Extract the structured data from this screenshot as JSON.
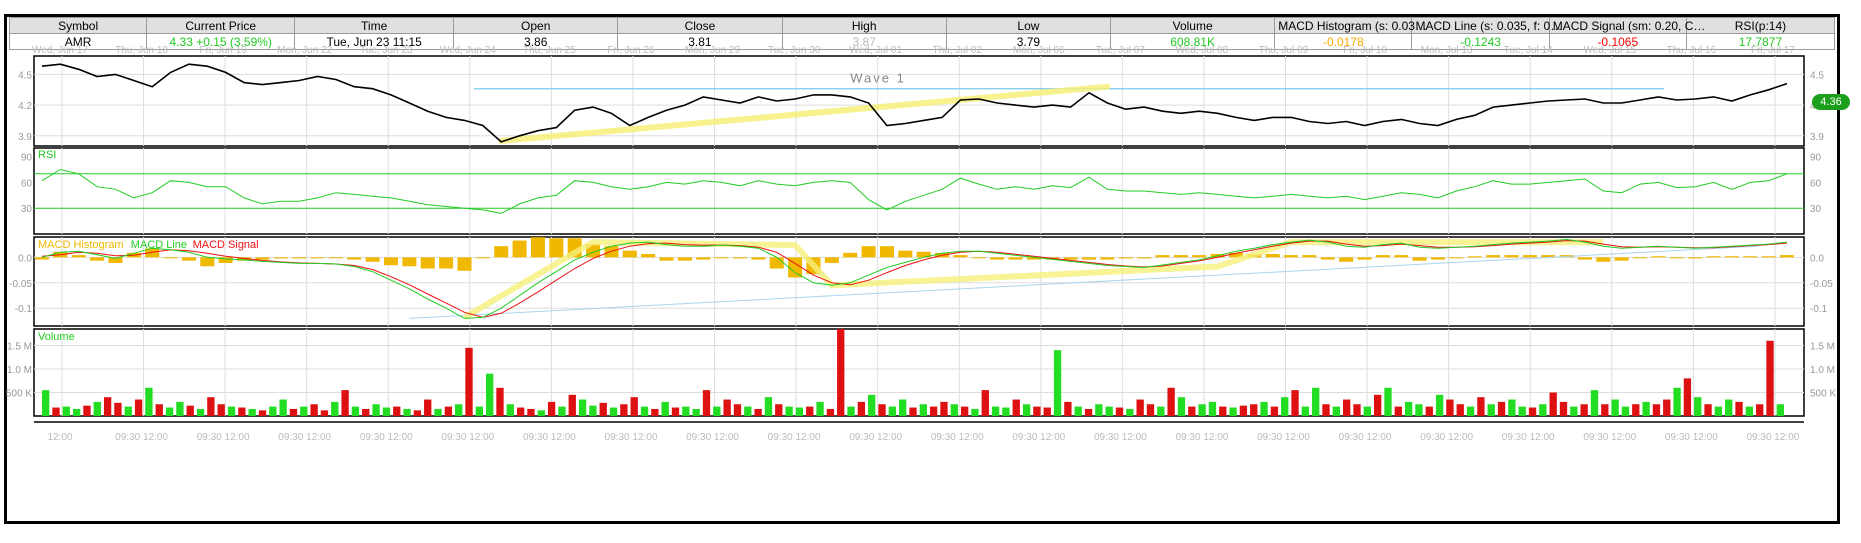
{
  "header": {
    "columns": [
      "Symbol",
      "Current Price",
      "Time",
      "Open",
      "Close",
      "High",
      "Low",
      "Volume",
      "MACD Histogram (s: 0.03…",
      "MACD Line (s: 0.035, f: 0…",
      "MACD Signal (sm: 0.20, C…",
      "RSI(p:14)"
    ],
    "values": [
      "AMR",
      "4.33 +0.15 (3.59%)",
      "Tue, Jun 23  11:15",
      "3.86",
      "3.81",
      "3.87",
      "3.79",
      "608.81K",
      "-0.0178",
      "-0.1243",
      "-0.1065",
      "17.7877"
    ],
    "value_colors": [
      "#000000",
      "#22cc22",
      "#000000",
      "#000000",
      "#000000",
      "#bbbbbb",
      "#000000",
      "#22cc22",
      "#ffaa00",
      "#22cc22",
      "#ff0000",
      "#22cc22"
    ]
  },
  "chart_data": {
    "type": "line",
    "x_dates": [
      "Wed, Jun 17",
      "Thu, Jun 18",
      "Fri, Jun 19",
      "Mon, Jun 22",
      "Tue, Jun 23",
      "Wed, Jun 24",
      "Thu, Jun 25",
      "Fri, Jun 26",
      "Mon, Jun 29",
      "Tue, Jun 30",
      "Wed, Jul 01",
      "Thu, Jul 02",
      "Mon, Jul 06",
      "Tue, Jul 07",
      "Wed, Jul 08",
      "Thu, Jul 09",
      "Fri, Jul 10",
      "Mon, Jul 13",
      "Tue, Jul 14",
      "Wed, Jul 15",
      "Thu, Jul 16",
      "Fri, Jul 17"
    ],
    "x_time_labels": [
      "12:00",
      "09:30 12:00",
      "09:30 12:00",
      "09:30 12:00",
      "09:30 12:00",
      "09:30 12:00",
      "09:30 12:00",
      "09:30 12:00",
      "09:30 12:00",
      "09:30 12:00",
      "09:30 12:00",
      "09:30 12:00",
      "09:30 12:00",
      "09:30 12:00",
      "09:30 12:00",
      "09:30 12:00",
      "09:30 12:00",
      "09:30 12:00",
      "09:30 12:00",
      "09:30 12:00",
      "09:30 12:00",
      "09:30 12:00"
    ],
    "price": {
      "y_ticks": [
        3.9,
        4.2,
        4.5
      ],
      "ylim": [
        3.8,
        4.68
      ],
      "current_label": "4.36",
      "annotation": "Wave 1",
      "horizontal_line": 4.36,
      "series": [
        4.58,
        4.6,
        4.55,
        4.48,
        4.5,
        4.44,
        4.38,
        4.52,
        4.6,
        4.58,
        4.52,
        4.42,
        4.4,
        4.42,
        4.44,
        4.48,
        4.45,
        4.38,
        4.36,
        4.3,
        4.22,
        4.14,
        4.08,
        4.05,
        4.0,
        3.84,
        3.9,
        3.95,
        3.98,
        4.15,
        4.18,
        4.12,
        4.0,
        4.08,
        4.15,
        4.2,
        4.28,
        4.25,
        4.22,
        4.28,
        4.24,
        4.26,
        4.3,
        4.3,
        4.28,
        4.22,
        4.0,
        4.02,
        4.05,
        4.08,
        4.25,
        4.26,
        4.22,
        4.2,
        4.18,
        4.2,
        4.18,
        4.32,
        4.22,
        4.16,
        4.18,
        4.14,
        4.12,
        4.14,
        4.12,
        4.08,
        4.05,
        4.08,
        4.08,
        4.04,
        4.02,
        4.04,
        4.0,
        4.04,
        4.06,
        4.02,
        4.0,
        4.06,
        4.1,
        4.18,
        4.2,
        4.22,
        4.24,
        4.25,
        4.26,
        4.22,
        4.22,
        4.25,
        4.28,
        4.25,
        4.26,
        4.28,
        4.24,
        4.3,
        4.35,
        4.41
      ]
    },
    "rsi": {
      "label": "RSI",
      "y_ticks": [
        30,
        60,
        90
      ],
      "ylim": [
        0,
        100
      ],
      "levels": [
        30,
        70
      ],
      "series": [
        62,
        75,
        70,
        55,
        52,
        42,
        48,
        62,
        60,
        55,
        55,
        42,
        35,
        38,
        38,
        42,
        48,
        46,
        44,
        42,
        38,
        34,
        32,
        30,
        28,
        24,
        35,
        42,
        45,
        62,
        60,
        55,
        52,
        55,
        60,
        58,
        62,
        60,
        56,
        62,
        58,
        56,
        60,
        62,
        60,
        40,
        28,
        38,
        45,
        52,
        65,
        58,
        52,
        55,
        52,
        56,
        54,
        66,
        52,
        50,
        50,
        48,
        46,
        48,
        46,
        44,
        42,
        44,
        46,
        44,
        42,
        44,
        40,
        44,
        48,
        46,
        42,
        50,
        55,
        62,
        58,
        58,
        60,
        62,
        64,
        50,
        48,
        58,
        60,
        54,
        55,
        60,
        52,
        60,
        62,
        70
      ]
    },
    "macd": {
      "legend": [
        "MACD Histogram",
        "MACD Line",
        "MACD Signal"
      ],
      "y_ticks": [
        0.0,
        -0.05,
        -0.1
      ],
      "ylim": [
        -0.135,
        0.04
      ],
      "macd_line": [
        0.0,
        0.01,
        0.012,
        0.005,
        -0.002,
        0.008,
        0.018,
        0.015,
        0.01,
        0.0,
        -0.003,
        -0.005,
        -0.008,
        -0.01,
        -0.012,
        -0.012,
        -0.013,
        -0.018,
        -0.028,
        -0.045,
        -0.062,
        -0.082,
        -0.1,
        -0.12,
        -0.118,
        -0.1,
        -0.075,
        -0.05,
        -0.028,
        -0.005,
        0.01,
        0.022,
        0.028,
        0.03,
        0.025,
        0.022,
        0.022,
        0.024,
        0.022,
        0.018,
        0.0,
        -0.03,
        -0.05,
        -0.055,
        -0.05,
        -0.035,
        -0.02,
        -0.01,
        0.0,
        0.008,
        0.012,
        0.012,
        0.008,
        0.004,
        0.0,
        -0.004,
        -0.008,
        -0.012,
        -0.016,
        -0.018,
        -0.02,
        -0.015,
        -0.01,
        -0.005,
        0.003,
        0.012,
        0.018,
        0.025,
        0.03,
        0.034,
        0.03,
        0.022,
        0.02,
        0.025,
        0.028,
        0.02,
        0.018,
        0.02,
        0.022,
        0.025,
        0.028,
        0.03,
        0.032,
        0.035,
        0.03,
        0.022,
        0.018,
        0.02,
        0.022,
        0.02,
        0.018,
        0.02,
        0.022,
        0.024,
        0.026,
        0.03
      ],
      "signal": [
        0.002,
        0.005,
        0.01,
        0.008,
        0.003,
        0.004,
        0.01,
        0.015,
        0.013,
        0.008,
        0.002,
        -0.002,
        -0.006,
        -0.009,
        -0.011,
        -0.012,
        -0.013,
        -0.016,
        -0.024,
        -0.038,
        -0.054,
        -0.072,
        -0.09,
        -0.108,
        -0.118,
        -0.11,
        -0.09,
        -0.068,
        -0.045,
        -0.022,
        -0.002,
        0.012,
        0.022,
        0.027,
        0.028,
        0.025,
        0.024,
        0.024,
        0.023,
        0.02,
        0.01,
        -0.012,
        -0.035,
        -0.05,
        -0.054,
        -0.045,
        -0.03,
        -0.016,
        -0.005,
        0.004,
        0.01,
        0.012,
        0.01,
        0.006,
        0.002,
        -0.002,
        -0.006,
        -0.01,
        -0.014,
        -0.017,
        -0.019,
        -0.017,
        -0.012,
        -0.007,
        0.0,
        0.008,
        0.015,
        0.022,
        0.028,
        0.032,
        0.032,
        0.026,
        0.022,
        0.023,
        0.026,
        0.023,
        0.02,
        0.02,
        0.021,
        0.023,
        0.026,
        0.028,
        0.03,
        0.033,
        0.032,
        0.026,
        0.021,
        0.02,
        0.021,
        0.02,
        0.019,
        0.019,
        0.021,
        0.023,
        0.025,
        0.028
      ]
    },
    "volume": {
      "label": "Volume",
      "y_ticks": [
        "500 K",
        "1.0 M",
        "1.5 M"
      ],
      "y_tick_values": [
        500000,
        1000000,
        1500000
      ],
      "ylim": [
        0,
        1850000
      ],
      "bars": [
        0.55,
        0.18,
        0.2,
        0.15,
        0.22,
        0.3,
        0.4,
        0.28,
        0.2,
        0.35,
        0.6,
        0.25,
        0.18,
        0.3,
        0.22,
        0.15,
        0.4,
        0.25,
        0.2,
        0.18,
        0.15,
        0.12,
        0.2,
        0.35,
        0.15,
        0.2,
        0.25,
        0.12,
        0.3,
        0.55,
        0.2,
        0.15,
        0.25,
        0.18,
        0.2,
        0.15,
        0.12,
        0.35,
        0.15,
        0.2,
        0.25,
        1.45,
        0.2,
        0.9,
        0.6,
        0.25,
        0.18,
        0.15,
        0.12,
        0.3,
        0.2,
        0.45,
        0.35,
        0.22,
        0.28,
        0.18,
        0.25,
        0.4,
        0.2,
        0.15,
        0.3,
        0.18,
        0.2,
        0.15,
        0.55,
        0.2,
        0.35,
        0.25,
        0.2,
        0.15,
        0.4,
        0.25,
        0.2,
        0.18,
        0.2,
        0.3,
        0.15,
        1.85,
        0.2,
        0.3,
        0.45,
        0.25,
        0.2,
        0.35,
        0.18,
        0.25,
        0.2,
        0.3,
        0.25,
        0.2,
        0.15,
        0.55,
        0.2,
        0.18,
        0.35,
        0.25,
        0.2,
        0.18,
        1.4,
        0.3,
        0.2,
        0.15,
        0.25,
        0.2,
        0.18,
        0.15,
        0.35,
        0.25,
        0.2,
        0.6,
        0.4,
        0.2,
        0.25,
        0.3,
        0.2,
        0.18,
        0.22,
        0.25,
        0.3,
        0.2,
        0.4,
        0.55,
        0.2,
        0.6,
        0.25,
        0.2,
        0.35,
        0.25,
        0.2,
        0.45,
        0.6,
        0.2,
        0.3,
        0.25,
        0.2,
        0.45,
        0.35,
        0.25,
        0.2,
        0.4,
        0.25,
        0.3,
        0.35,
        0.2,
        0.18,
        0.25,
        0.5,
        0.3,
        0.2,
        0.25,
        0.55,
        0.25,
        0.35,
        0.2,
        0.25,
        0.3,
        0.25,
        0.35,
        0.6,
        0.8,
        0.4,
        0.25,
        0.2,
        0.35,
        0.3,
        0.2,
        0.25,
        1.6,
        0.25
      ],
      "colors_pattern": [
        "g",
        "r",
        "g",
        "g",
        "r",
        "g",
        "r",
        "r",
        "g",
        "r"
      ]
    }
  },
  "colors": {
    "price_line": "#000000",
    "rsi_line": "#22cc22",
    "rsi_level": "#22cc22",
    "macd_line": "#22cc22",
    "macd_signal": "#ee1111",
    "macd_hist": "#f0b800",
    "vol_up": "#22dd22",
    "vol_down": "#dd1111",
    "trend_highlight": "#f6f07a",
    "hline": "#7ac8e8",
    "grid": "#dddddd"
  }
}
